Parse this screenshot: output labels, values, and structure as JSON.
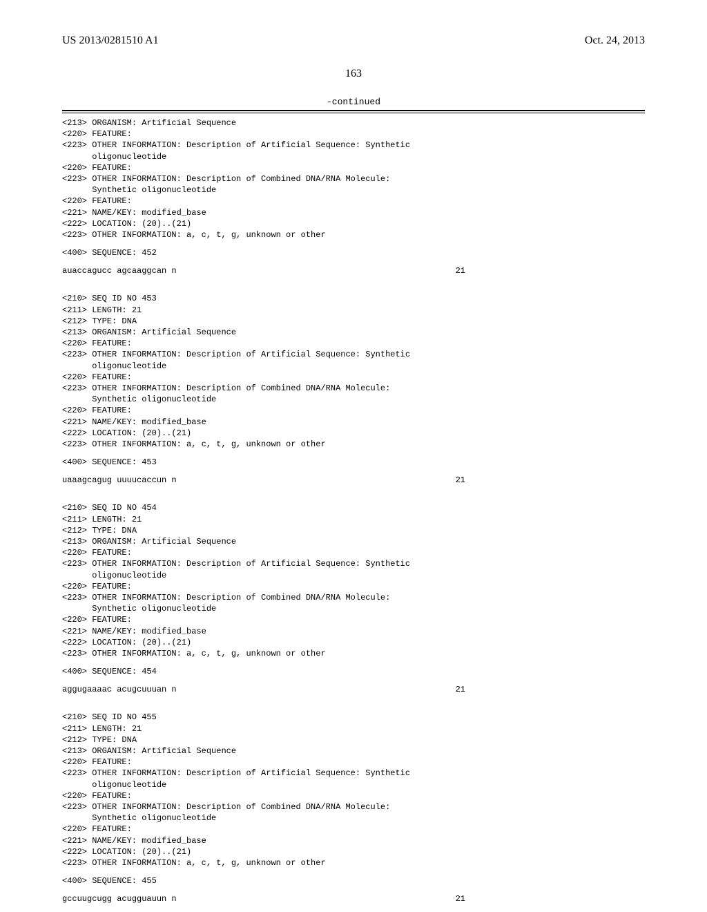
{
  "header": {
    "pub_number": "US 2013/0281510 A1",
    "pub_date": "Oct. 24, 2013"
  },
  "page_number": "163",
  "continued_label": "-continued",
  "entries": [
    {
      "leading_block": "<213> ORGANISM: Artificial Sequence\n<220> FEATURE:\n<223> OTHER INFORMATION: Description of Artificial Sequence: Synthetic\n      oligonucleotide\n<220> FEATURE:\n<223> OTHER INFORMATION: Description of Combined DNA/RNA Molecule:\n      Synthetic oligonucleotide\n<220> FEATURE:\n<221> NAME/KEY: modified_base\n<222> LOCATION: (20)..(21)\n<223> OTHER INFORMATION: a, c, t, g, unknown or other",
      "sequence_tag": "<400> SEQUENCE: 452",
      "sequence_text": "auaccagucc agcaaggcan n",
      "sequence_len": "21"
    },
    {
      "leading_block": "<210> SEQ ID NO 453\n<211> LENGTH: 21\n<212> TYPE: DNA\n<213> ORGANISM: Artificial Sequence\n<220> FEATURE:\n<223> OTHER INFORMATION: Description of Artificial Sequence: Synthetic\n      oligonucleotide\n<220> FEATURE:\n<223> OTHER INFORMATION: Description of Combined DNA/RNA Molecule:\n      Synthetic oligonucleotide\n<220> FEATURE:\n<221> NAME/KEY: modified_base\n<222> LOCATION: (20)..(21)\n<223> OTHER INFORMATION: a, c, t, g, unknown or other",
      "sequence_tag": "<400> SEQUENCE: 453",
      "sequence_text": "uaaagcagug uuuucaccun n",
      "sequence_len": "21"
    },
    {
      "leading_block": "<210> SEQ ID NO 454\n<211> LENGTH: 21\n<212> TYPE: DNA\n<213> ORGANISM: Artificial Sequence\n<220> FEATURE:\n<223> OTHER INFORMATION: Description of Artificial Sequence: Synthetic\n      oligonucleotide\n<220> FEATURE:\n<223> OTHER INFORMATION: Description of Combined DNA/RNA Molecule:\n      Synthetic oligonucleotide\n<220> FEATURE:\n<221> NAME/KEY: modified_base\n<222> LOCATION: (20)..(21)\n<223> OTHER INFORMATION: a, c, t, g, unknown or other",
      "sequence_tag": "<400> SEQUENCE: 454",
      "sequence_text": "aggugaaaac acugcuuuan n",
      "sequence_len": "21"
    },
    {
      "leading_block": "<210> SEQ ID NO 455\n<211> LENGTH: 21\n<212> TYPE: DNA\n<213> ORGANISM: Artificial Sequence\n<220> FEATURE:\n<223> OTHER INFORMATION: Description of Artificial Sequence: Synthetic\n      oligonucleotide\n<220> FEATURE:\n<223> OTHER INFORMATION: Description of Combined DNA/RNA Molecule:\n      Synthetic oligonucleotide\n<220> FEATURE:\n<221> NAME/KEY: modified_base\n<222> LOCATION: (20)..(21)\n<223> OTHER INFORMATION: a, c, t, g, unknown or other",
      "sequence_tag": "<400> SEQUENCE: 455",
      "sequence_text": "gccuugcugg acugguauun n",
      "sequence_len": "21"
    }
  ]
}
